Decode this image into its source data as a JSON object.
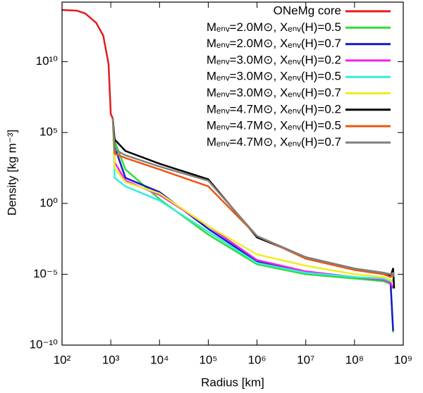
{
  "chart_data": {
    "type": "line",
    "x_label": "Radius [km]",
    "y_label": "Density [kg m⁻³]",
    "x_scale": "log",
    "y_scale": "log",
    "xlim": [
      100,
      1000000000
    ],
    "ylim": [
      1e-10,
      160000000000000.0
    ],
    "xticks": [
      {
        "value": 100,
        "label": "10²"
      },
      {
        "value": 1000,
        "label": "10³"
      },
      {
        "value": 10000,
        "label": "10⁴"
      },
      {
        "value": 100000,
        "label": "10⁵"
      },
      {
        "value": 1000000,
        "label": "10⁶"
      },
      {
        "value": 10000000,
        "label": "10⁷"
      },
      {
        "value": 100000000,
        "label": "10⁸"
      },
      {
        "value": 1000000000,
        "label": "10⁹"
      }
    ],
    "yticks": [
      {
        "value": 1e-10,
        "label": "10⁻¹⁰"
      },
      {
        "value": 1e-05,
        "label": "10⁻⁵"
      },
      {
        "value": 1,
        "label": "10⁰"
      },
      {
        "value": 100000,
        "label": "10⁵"
      },
      {
        "value": 10000000000,
        "label": "10¹⁰"
      }
    ],
    "legend": "upper right",
    "x": [
      100,
      200,
      300,
      500,
      700,
      900,
      1000,
      1100,
      1200,
      2000,
      10000,
      100000,
      1000000,
      10000000,
      100000000,
      400000000,
      550000000,
      620000000,
      650000000
    ],
    "series": [
      {
        "name": "ONeMg core",
        "color": "#e41a1c",
        "values": [
          45000000000000.0,
          40000000000000.0,
          25000000000000.0,
          5600000000000.0,
          700000000000.0,
          7000000000.0,
          2000000.0,
          1000000.0,
          null,
          null,
          null,
          null,
          null,
          null,
          null,
          null,
          null,
          null,
          null
        ]
      },
      {
        "name": "Mₑₙᵥ=2.0M⊙, Xₑₙᵥ(H)=0.5",
        "color": "#33dd33",
        "values": [
          null,
          null,
          null,
          null,
          null,
          null,
          null,
          1000000.0,
          25000.0,
          250,
          2,
          0.0063,
          5e-05,
          1e-05,
          5e-06,
          3.2e-06,
          2e-06,
          7.9e-10,
          null
        ]
      },
      {
        "name": "Mₑₙᵥ=2.0M⊙, Xₑₙᵥ(H)=0.7",
        "color": "#1a1acc",
        "values": [
          null,
          null,
          null,
          null,
          null,
          null,
          null,
          1000000.0,
          10000.0,
          63,
          6.3,
          0.016,
          7.9e-05,
          1.26e-05,
          6.3e-06,
          4e-06,
          2.5e-06,
          1e-09,
          null
        ]
      },
      {
        "name": "Mₑₙᵥ=3.0M⊙, Xₑₙᵥ(H)=0.2",
        "color": "#ee22ee",
        "values": [
          null,
          null,
          null,
          null,
          null,
          null,
          null,
          1000000.0,
          790,
          40,
          4,
          0.025,
          0.0001,
          1.6e-05,
          6.3e-06,
          4e-06,
          2.5e-06,
          1e-06,
          null
        ]
      },
      {
        "name": "Mₑₙᵥ=3.0M⊙, Xₑₙᵥ(H)=0.5",
        "color": "#33eedd",
        "values": [
          null,
          null,
          null,
          null,
          null,
          null,
          null,
          1000000.0,
          63,
          16,
          1.6,
          0.01,
          6.3e-05,
          1.26e-05,
          6.3e-06,
          5e-06,
          3.2e-06,
          4e-06,
          null
        ]
      },
      {
        "name": "Mₑₙᵥ=3.0M⊙, Xₑₙᵥ(H)=0.7",
        "color": "#eeee22",
        "values": [
          null,
          null,
          null,
          null,
          null,
          null,
          null,
          1000000.0,
          320,
          32,
          5,
          0.025,
          0.00025,
          4e-05,
          1e-05,
          6.3e-06,
          4e-06,
          2.5e-06,
          null
        ]
      },
      {
        "name": "Mₑₙᵥ=4.7M⊙, Xₑₙᵥ(H)=0.2",
        "color": "#000000",
        "values": [
          null,
          null,
          null,
          null,
          null,
          null,
          null,
          1000000.0,
          32000.0,
          5000,
          630,
          50,
          0.004,
          0.00016,
          2.5e-05,
          1.26e-05,
          7.9e-06,
          2.5e-05,
          1e-06
        ]
      },
      {
        "name": "Mₑₙᵥ=4.7M⊙, Xₑₙᵥ(H)=0.5",
        "color": "#ee5511",
        "values": [
          null,
          null,
          null,
          null,
          null,
          null,
          null,
          1000000.0,
          3200,
          1600,
          250,
          16,
          0.005,
          0.000126,
          2e-05,
          1e-05,
          6.3e-06,
          1e-05,
          null
        ]
      },
      {
        "name": "Mₑₙᵥ=4.7M⊙, Xₑₙᵥ(H)=0.7",
        "color": "#808080",
        "values": [
          null,
          null,
          null,
          null,
          null,
          null,
          null,
          1000000.0,
          6300,
          2500,
          400,
          40,
          0.005,
          0.00016,
          2.5e-05,
          1.26e-05,
          1e-05,
          1.26e-05,
          6.3e-06
        ]
      }
    ]
  }
}
